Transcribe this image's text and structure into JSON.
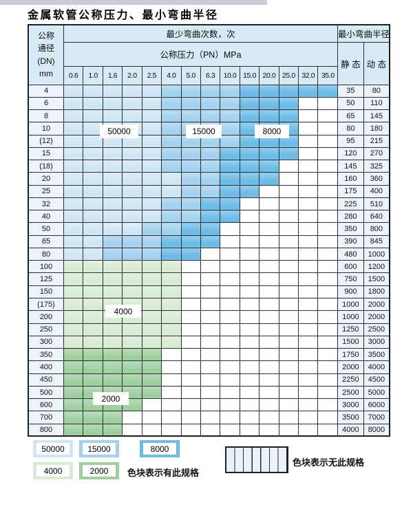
{
  "title": "金属软管公称压力、最小弯曲半径",
  "table": {
    "dn_header": [
      "公称",
      "通径",
      "(DN)",
      "mm"
    ],
    "bend_header": "最少弯曲次数，次",
    "pressure_header": "公称压力（PN）MPa",
    "radius_header": "最小弯曲半径",
    "static_header": "静 态",
    "dynamic_header": "动 态",
    "pressure_columns": [
      "0.6",
      "1.0",
      "1.6",
      "2.0",
      "2.5",
      "4.0",
      "5.0",
      "6.3",
      "10.0",
      "15.0",
      "20.0",
      "25.0",
      "32.0",
      "35.0"
    ],
    "rows": [
      {
        "dn": "4",
        "static": "35",
        "dynamic": "80",
        "cells": [
          "L",
          "L",
          "L",
          "L",
          "L",
          "M",
          "M",
          "M",
          "M",
          "D",
          "D",
          "D",
          "D",
          "D"
        ]
      },
      {
        "dn": "6",
        "static": "50",
        "dynamic": "110",
        "cells": [
          "L",
          "L",
          "L",
          "L",
          "L",
          "M",
          "M",
          "M",
          "M",
          "D",
          "D",
          "D",
          "X",
          "X"
        ]
      },
      {
        "dn": "8",
        "static": "65",
        "dynamic": "145",
        "cells": [
          "L",
          "L",
          "L",
          "L",
          "L",
          "M",
          "M",
          "M",
          "M",
          "D",
          "D",
          "D",
          "X",
          "X"
        ]
      },
      {
        "dn": "10",
        "static": "80",
        "dynamic": "180",
        "cells": [
          "L",
          "L",
          "L",
          "L",
          "L",
          "M",
          "M",
          "M",
          "M",
          "D",
          "D",
          "D",
          "X",
          "X"
        ]
      },
      {
        "dn": "(12)",
        "static": "95",
        "dynamic": "215",
        "cells": [
          "L",
          "L",
          "L",
          "L",
          "L",
          "M",
          "M",
          "M",
          "M",
          "D",
          "D",
          "D",
          "X",
          "X"
        ]
      },
      {
        "dn": "15",
        "static": "120",
        "dynamic": "270",
        "cells": [
          "L",
          "L",
          "L",
          "L",
          "L",
          "M",
          "M",
          "M",
          "D",
          "D",
          "D",
          "D",
          "X",
          "X"
        ]
      },
      {
        "dn": "(18)",
        "static": "145",
        "dynamic": "325",
        "cells": [
          "L",
          "L",
          "L",
          "L",
          "L",
          "M",
          "M",
          "M",
          "D",
          "D",
          "D",
          "X",
          "X",
          "X"
        ]
      },
      {
        "dn": "20",
        "static": "160",
        "dynamic": "360",
        "cells": [
          "L",
          "L",
          "L",
          "L",
          "L",
          "L",
          "M",
          "M",
          "D",
          "D",
          "D",
          "X",
          "X",
          "X"
        ]
      },
      {
        "dn": "25",
        "static": "175",
        "dynamic": "400",
        "cells": [
          "L",
          "L",
          "L",
          "L",
          "L",
          "L",
          "M",
          "M",
          "D",
          "D",
          "X",
          "X",
          "X",
          "X"
        ]
      },
      {
        "dn": "32",
        "static": "225",
        "dynamic": "510",
        "cells": [
          "L",
          "L",
          "L",
          "L",
          "L",
          "M",
          "M",
          "D",
          "D",
          "X",
          "X",
          "X",
          "X",
          "X"
        ]
      },
      {
        "dn": "40",
        "static": "280",
        "dynamic": "640",
        "cells": [
          "L",
          "L",
          "L",
          "L",
          "L",
          "M",
          "M",
          "D",
          "D",
          "X",
          "X",
          "X",
          "X",
          "X"
        ]
      },
      {
        "dn": "50",
        "static": "350",
        "dynamic": "800",
        "cells": [
          "L",
          "L",
          "L",
          "L",
          "M",
          "M",
          "D",
          "D",
          "X",
          "X",
          "X",
          "X",
          "X",
          "X"
        ]
      },
      {
        "dn": "65",
        "static": "390",
        "dynamic": "845",
        "cells": [
          "L",
          "L",
          "M",
          "M",
          "M",
          "D",
          "D",
          "D",
          "X",
          "X",
          "X",
          "X",
          "X",
          "X"
        ]
      },
      {
        "dn": "80",
        "static": "480",
        "dynamic": "1000",
        "cells": [
          "L",
          "L",
          "M",
          "M",
          "M",
          "D",
          "D",
          "X",
          "X",
          "X",
          "X",
          "X",
          "X",
          "X"
        ]
      },
      {
        "dn": "100",
        "static": "600",
        "dynamic": "1200",
        "cells": [
          "G4",
          "G4",
          "G4",
          "G4",
          "G4",
          "G4",
          "X",
          "X",
          "X",
          "X",
          "X",
          "X",
          "X",
          "X"
        ]
      },
      {
        "dn": "125",
        "static": "750",
        "dynamic": "1500",
        "cells": [
          "G4",
          "G4",
          "G4",
          "G4",
          "G4",
          "G4",
          "X",
          "X",
          "X",
          "X",
          "X",
          "X",
          "X",
          "X"
        ]
      },
      {
        "dn": "150",
        "static": "900",
        "dynamic": "1800",
        "cells": [
          "G4",
          "G4",
          "G4",
          "G4",
          "G4",
          "G4",
          "X",
          "X",
          "X",
          "X",
          "X",
          "X",
          "X",
          "X"
        ]
      },
      {
        "dn": "(175)",
        "static": "1000",
        "dynamic": "2000",
        "cells": [
          "G4",
          "G4",
          "G4",
          "G4",
          "G4",
          "G4",
          "X",
          "X",
          "X",
          "X",
          "X",
          "X",
          "X",
          "X"
        ]
      },
      {
        "dn": "200",
        "static": "1000",
        "dynamic": "2000",
        "cells": [
          "G4",
          "G4",
          "G4",
          "G4",
          "G4",
          "G4",
          "X",
          "X",
          "X",
          "X",
          "X",
          "X",
          "X",
          "X"
        ]
      },
      {
        "dn": "250",
        "static": "1250",
        "dynamic": "2500",
        "cells": [
          "G4",
          "G4",
          "G4",
          "G4",
          "G4",
          "G4",
          "X",
          "X",
          "X",
          "X",
          "X",
          "X",
          "X",
          "X"
        ]
      },
      {
        "dn": "300",
        "static": "1500",
        "dynamic": "3000",
        "cells": [
          "G4",
          "G4",
          "G4",
          "G4",
          "G4",
          "G4",
          "X",
          "X",
          "X",
          "X",
          "X",
          "X",
          "X",
          "X"
        ]
      },
      {
        "dn": "350",
        "static": "1750",
        "dynamic": "3500",
        "cells": [
          "G2",
          "G2",
          "G2",
          "G2",
          "G2",
          "X",
          "X",
          "X",
          "X",
          "X",
          "X",
          "X",
          "X",
          "X"
        ]
      },
      {
        "dn": "400",
        "static": "2000",
        "dynamic": "4000",
        "cells": [
          "G2",
          "G2",
          "G2",
          "G2",
          "G2",
          "X",
          "X",
          "X",
          "X",
          "X",
          "X",
          "X",
          "X",
          "X"
        ]
      },
      {
        "dn": "450",
        "static": "2250",
        "dynamic": "4500",
        "cells": [
          "G2",
          "G2",
          "G2",
          "G2",
          "G2",
          "X",
          "X",
          "X",
          "X",
          "X",
          "X",
          "X",
          "X",
          "X"
        ]
      },
      {
        "dn": "500",
        "static": "2500",
        "dynamic": "5000",
        "cells": [
          "G2",
          "G2",
          "G2",
          "G2",
          "G2",
          "X",
          "X",
          "X",
          "X",
          "X",
          "X",
          "X",
          "X",
          "X"
        ]
      },
      {
        "dn": "600",
        "static": "3000",
        "dynamic": "6000",
        "cells": [
          "G2",
          "G2",
          "G2",
          "G2",
          "X",
          "X",
          "X",
          "X",
          "X",
          "X",
          "X",
          "X",
          "X",
          "X"
        ]
      },
      {
        "dn": "700",
        "static": "3500",
        "dynamic": "7000",
        "cells": [
          "G2",
          "G2",
          "G2",
          "X",
          "X",
          "X",
          "X",
          "X",
          "X",
          "X",
          "X",
          "X",
          "X",
          "X"
        ]
      },
      {
        "dn": "800",
        "static": "4000",
        "dynamic": "8000",
        "cells": [
          "G2",
          "G2",
          "G2",
          "X",
          "X",
          "X",
          "X",
          "X",
          "X",
          "X",
          "X",
          "X",
          "X",
          "X"
        ]
      }
    ]
  },
  "zone_labels": [
    {
      "id": "z50000",
      "text": "50000"
    },
    {
      "id": "z15000",
      "text": "15000"
    },
    {
      "id": "z8000",
      "text": "8000"
    },
    {
      "id": "z4000",
      "text": "4000"
    },
    {
      "id": "z2000",
      "text": "2000"
    }
  ],
  "legend": {
    "swatches": [
      {
        "value": "50000",
        "color_key": "L"
      },
      {
        "value": "15000",
        "color_key": "M"
      },
      {
        "value": "8000",
        "color_key": "D"
      },
      {
        "value": "4000",
        "color_key": "G4"
      },
      {
        "value": "2000",
        "color_key": "G2"
      }
    ],
    "has_spec_note": "色块表示有此规格",
    "no_spec_note": "色块表示无此规格"
  },
  "colors": {
    "L": "#cfe6f6",
    "M": "#a3d1ee",
    "D": "#6cbce7",
    "G4": "#d8ebd3",
    "G2": "#9ed09f",
    "hatch_bg": "#e9f1f9",
    "header_bg": "#d9eaf7",
    "label_bg": "#ecf3fb",
    "border": "#2e2e2e"
  }
}
